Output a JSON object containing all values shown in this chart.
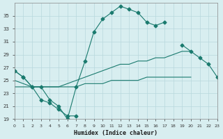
{
  "xlabel": "Humidex (Indice chaleur)",
  "ylabel": "",
  "bg_color": "#d8eef0",
  "grid_color": "#b8d8dc",
  "line_color": "#1a7a6e",
  "xlim": [
    0,
    23
  ],
  "ylim": [
    19,
    37
  ],
  "xticks": [
    0,
    1,
    2,
    3,
    4,
    5,
    6,
    7,
    8,
    9,
    10,
    11,
    12,
    13,
    14,
    15,
    16,
    17,
    18,
    19,
    20,
    21,
    22,
    23
  ],
  "yticks": [
    19,
    21,
    23,
    25,
    27,
    29,
    31,
    33,
    35
  ],
  "line1_x": [
    0,
    1,
    2,
    3,
    4,
    5,
    6,
    7,
    8,
    9,
    10,
    11,
    12,
    13,
    14,
    15,
    16,
    17,
    18,
    19,
    20,
    21,
    22,
    23
  ],
  "line1_y": [
    26.5,
    25.5,
    24.0,
    22.0,
    21.5,
    20.5,
    19.5,
    19.5,
    null,
    null,
    null,
    null,
    null,
    null,
    null,
    null,
    null,
    null,
    null,
    null,
    null,
    null,
    null,
    null
  ],
  "line2_x": [
    0,
    1,
    2,
    3,
    4,
    5,
    6,
    7,
    8,
    9,
    10,
    11,
    12,
    13,
    14,
    15,
    16,
    17,
    18,
    19,
    20,
    21,
    22,
    23
  ],
  "line2_y": [
    26.5,
    25.5,
    24.0,
    24.0,
    22.0,
    21.0,
    19.0,
    24.0,
    28.0,
    32.5,
    34.5,
    35.5,
    36.5,
    36.0,
    35.5,
    34.0,
    33.5,
    34.0,
    null,
    30.5,
    29.5,
    28.5,
    27.5,
    25.5
  ],
  "line3_x": [
    0,
    1,
    2,
    3,
    4,
    5,
    6,
    7,
    8,
    9,
    10,
    11,
    12,
    13,
    14,
    15,
    16,
    17,
    18,
    19,
    20,
    21,
    22,
    23
  ],
  "line3_y": [
    25.0,
    24.5,
    24.0,
    24.0,
    24.0,
    24.0,
    24.5,
    25.0,
    25.5,
    26.0,
    26.5,
    27.0,
    27.5,
    27.5,
    28.0,
    28.0,
    28.5,
    28.5,
    29.0,
    29.5,
    29.5,
    null,
    null,
    null
  ],
  "line4_x": [
    0,
    1,
    2,
    3,
    4,
    5,
    6,
    7,
    8,
    9,
    10,
    11,
    12,
    13,
    14,
    15,
    16,
    17,
    18,
    19,
    20,
    21,
    22,
    23
  ],
  "line4_y": [
    24.0,
    24.0,
    24.0,
    24.0,
    24.0,
    24.0,
    24.0,
    24.0,
    24.5,
    24.5,
    24.5,
    25.0,
    25.0,
    25.0,
    25.0,
    25.5,
    25.5,
    25.5,
    25.5,
    25.5,
    25.5,
    null,
    null,
    null
  ]
}
